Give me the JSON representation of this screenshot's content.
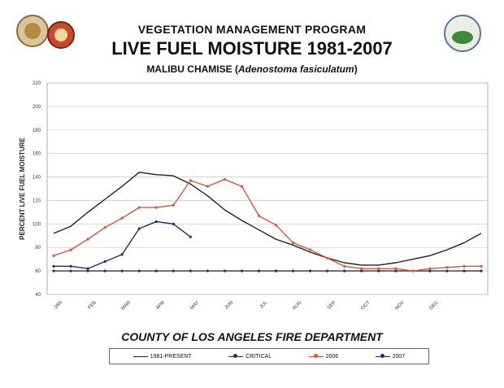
{
  "header": {
    "program": "VEGETATION MANAGEMENT PROGRAM",
    "title": "LIVE FUEL MOISTURE 1981-2007",
    "subtitle_plain": "MALIBU CHAMISE (",
    "subtitle_italic": "Adenostoma fasiculatum",
    "subtitle_close": ")"
  },
  "footer": {
    "department": "COUNTY OF LOS ANGELES FIRE DEPARTMENT"
  },
  "colors": {
    "average": "#222222",
    "critical": "#333333",
    "y2006": "#d9573b",
    "y2007": "#1f2f6a",
    "grid": "#cfcfcf"
  },
  "chart_data": {
    "type": "line",
    "title": "LIVE FUEL MOISTURE 1981-2007",
    "ylabel": "PERCENT LIVE FUEL MOISTURE",
    "xlabel": "",
    "ylim": [
      40,
      220
    ],
    "yticks": [
      40,
      60,
      80,
      100,
      120,
      140,
      160,
      180,
      200,
      220
    ],
    "ytick_labels": [
      "40",
      "60",
      "80",
      "100",
      "120",
      "140",
      "160",
      "180",
      "200",
      "220"
    ],
    "month_labels": [
      "JAN",
      "FEB",
      "MAR",
      "APR",
      "MAY",
      "JUN",
      "JUL",
      "AUG",
      "SEP",
      "OCT",
      "NOV",
      "DEC"
    ],
    "xlim": [
      0,
      25
    ],
    "grid": true,
    "legend_position": "bottom",
    "series": [
      {
        "name": "1981-PRESENT",
        "color": "#222222",
        "marker": "none",
        "x": [
          0,
          1,
          2,
          3,
          4,
          5,
          6,
          7,
          8,
          9,
          10,
          11,
          12,
          13,
          14,
          15,
          16,
          17,
          18,
          19,
          20,
          21,
          22,
          23,
          24,
          25
        ],
        "y": [
          92,
          98,
          110,
          121,
          132,
          144,
          142,
          141,
          134,
          124,
          112,
          103,
          95,
          87,
          82,
          76,
          71,
          67,
          65,
          65,
          67,
          70,
          73,
          78,
          84,
          92
        ]
      },
      {
        "name": "CRITICAL",
        "color": "#333333",
        "marker": "dot",
        "x": [
          0,
          1,
          2,
          3,
          4,
          5,
          6,
          7,
          8,
          9,
          10,
          11,
          12,
          13,
          14,
          15,
          16,
          17,
          18,
          19,
          20,
          21,
          22,
          23,
          24,
          25
        ],
        "y": [
          60,
          60,
          60,
          60,
          60,
          60,
          60,
          60,
          60,
          60,
          60,
          60,
          60,
          60,
          60,
          60,
          60,
          60,
          60,
          60,
          60,
          60,
          60,
          60,
          60,
          60
        ]
      },
      {
        "name": "2006",
        "color": "#d9573b",
        "marker": "dot",
        "x": [
          0,
          1,
          2,
          3,
          4,
          5,
          6,
          7,
          8,
          9,
          10,
          11,
          12,
          13,
          14,
          15,
          16,
          17,
          18,
          19,
          20,
          21,
          22,
          23,
          24,
          25
        ],
        "y": [
          73,
          78,
          87,
          97,
          105,
          114,
          114,
          116,
          137,
          132,
          138,
          132,
          107,
          99,
          84,
          78,
          71,
          64,
          62,
          62,
          62,
          60,
          62,
          63,
          64,
          64
        ]
      },
      {
        "name": "2007",
        "color": "#1f2f6a",
        "marker": "dot",
        "x": [
          0,
          1,
          2,
          3,
          4,
          5,
          6,
          7,
          8
        ],
        "y": [
          64,
          64,
          62,
          68,
          74,
          96,
          102,
          100,
          89
        ]
      }
    ]
  }
}
